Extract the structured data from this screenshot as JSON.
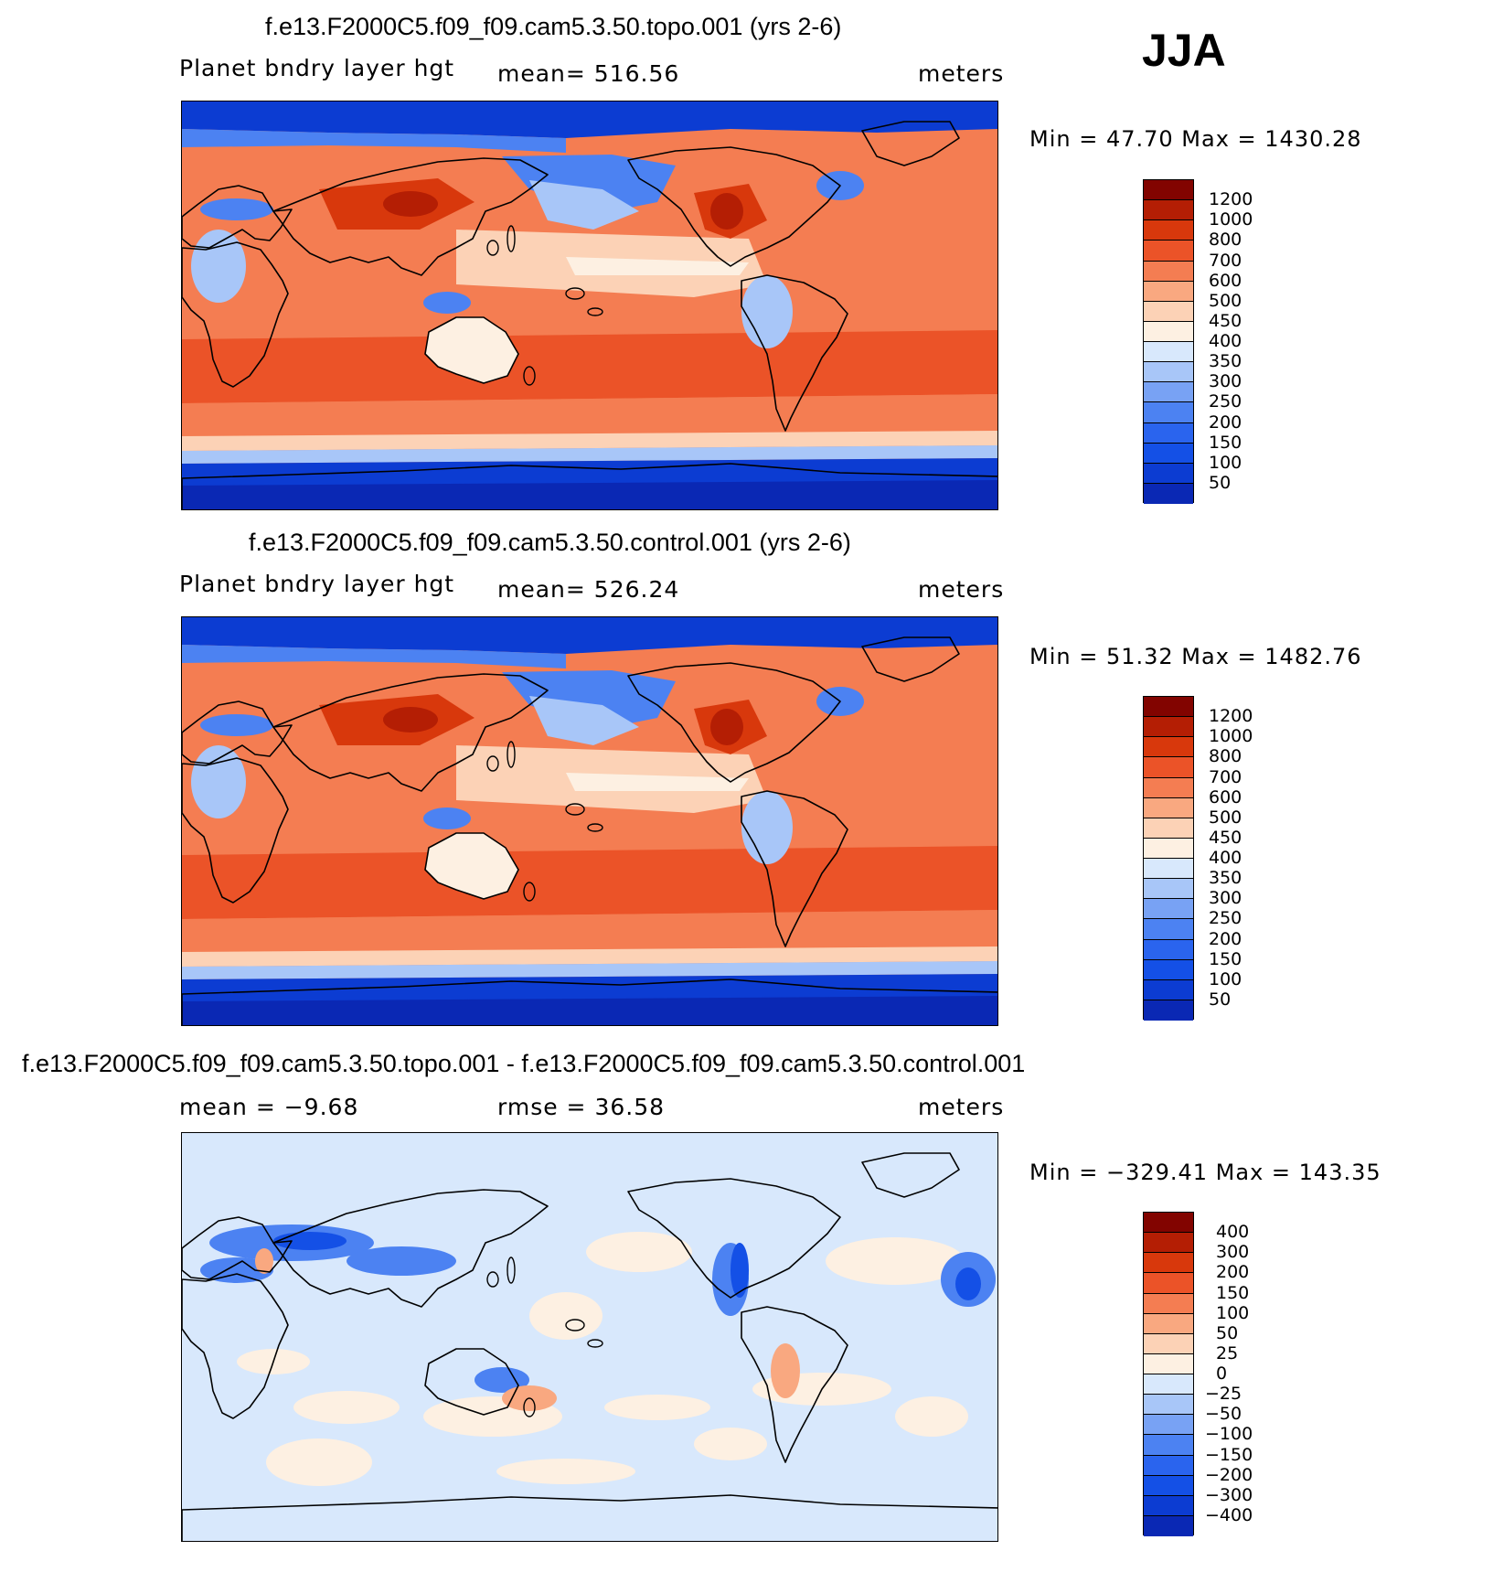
{
  "season": "JJA",
  "colors": {
    "pos_scale": [
      "#05148a",
      "#0a28b4",
      "#0c3cd2",
      "#1450e6",
      "#2a64ee",
      "#4c82f2",
      "#78a2f4",
      "#a8c6f8",
      "#d8e8fc",
      "#fdf0e2",
      "#fcd2b6",
      "#f9a880",
      "#f47d52",
      "#eb5328",
      "#d8380c",
      "#b41e04",
      "#820400"
    ],
    "diff_scale": [
      "#05148a",
      "#0a28b4",
      "#0c3cd2",
      "#1450e6",
      "#2a64ee",
      "#4c82f2",
      "#78a2f4",
      "#a8c6f8",
      "#d8e8fc",
      "#fdf0e2",
      "#fcd2b6",
      "#f9a880",
      "#f47d52",
      "#eb5328",
      "#d8380c",
      "#b41e04",
      "#820400"
    ]
  },
  "panels": [
    {
      "title": "f.e13.F2000C5.f09_f09.cam5.3.50.topo.001 (yrs 2-6)",
      "left_label": "Planet bndry layer hgt",
      "center_label": "mean= 516.56",
      "units": "meters",
      "minmax": "Min =   47.70 Max = 1430.28",
      "type": "abs",
      "levels": [
        "1200",
        "1000",
        "800",
        "700",
        "600",
        "500",
        "450",
        "400",
        "350",
        "300",
        "250",
        "200",
        "150",
        "100",
        "50"
      ]
    },
    {
      "title": "f.e13.F2000C5.f09_f09.cam5.3.50.control.001 (yrs 2-6)",
      "left_label": "Planet bndry layer hgt",
      "center_label": "mean= 526.24",
      "units": "meters",
      "minmax": "Min =   51.32 Max = 1482.76",
      "type": "abs",
      "levels": [
        "1200",
        "1000",
        "800",
        "700",
        "600",
        "500",
        "450",
        "400",
        "350",
        "300",
        "250",
        "200",
        "150",
        "100",
        "50"
      ]
    },
    {
      "title": "f.e13.F2000C5.f09_f09.cam5.3.50.topo.001 - f.e13.F2000C5.f09_f09.cam5.3.50.control.001",
      "left_label": "mean =   −9.68",
      "center_label": "rmse =   36.58",
      "units": "meters",
      "minmax": "Min = −329.41 Max = 143.35",
      "type": "diff",
      "levels": [
        "400",
        "300",
        "200",
        "150",
        "100",
        "50",
        "25",
        "0",
        "−25",
        "−50",
        "−100",
        "−150",
        "−200",
        "−300",
        "−400"
      ]
    }
  ]
}
